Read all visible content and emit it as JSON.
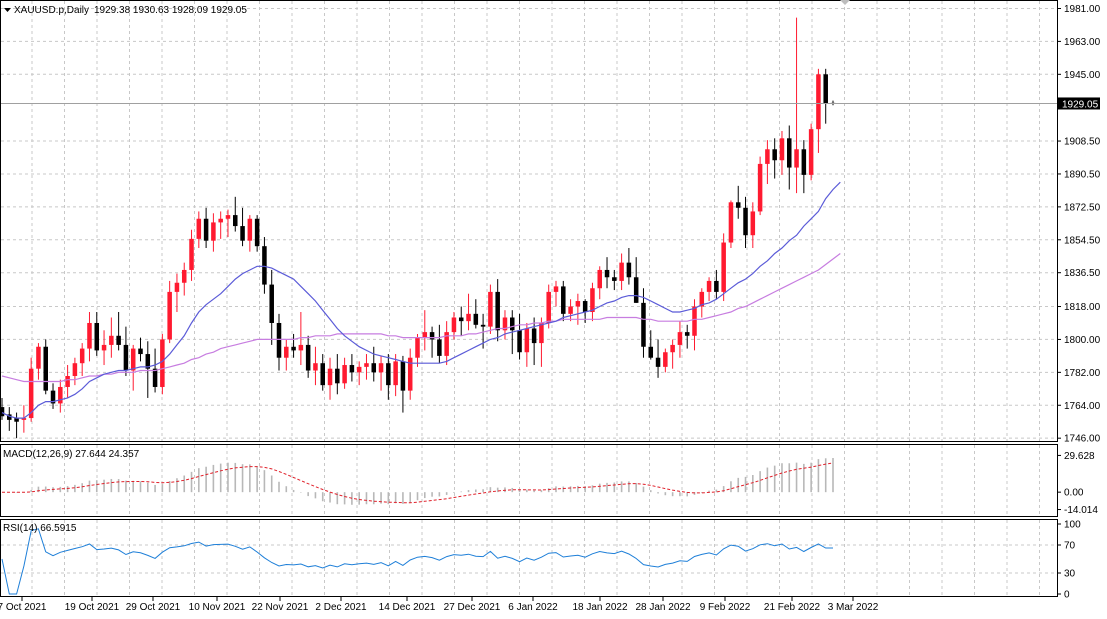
{
  "chart_data": {
    "type": "candlestick",
    "symbol_header": "XAUUSD.p,Daily",
    "ohlc_header": "1929.38 1930.63 1928.09 1929.05",
    "current_price_label": "1929.05",
    "date_labels": [
      "7 Oct 2021",
      "19 Oct 2021",
      "29 Oct 2021",
      "10 Nov 2021",
      "22 Nov 2021",
      "2 Dec 2021",
      "14 Dec 2021",
      "27 Dec 2021",
      "6 Jan 2022",
      "18 Jan 2022",
      "28 Jan 2022",
      "9 Feb 2022",
      "21 Feb 2022",
      "3 Mar 2022"
    ],
    "price_axis_ticks": [
      "1981.00",
      "1963.00",
      "1945.00",
      "1908.50",
      "1890.50",
      "1872.50",
      "1854.50",
      "1836.50",
      "1818.00",
      "1800.00",
      "1782.00",
      "1764.00",
      "1746.00"
    ],
    "price_axis_values": [
      1981,
      1963,
      1945,
      1908.5,
      1890.5,
      1872.5,
      1854.5,
      1836.5,
      1818,
      1800,
      1782,
      1764,
      1746
    ],
    "ylim": [
      1745,
      1984
    ],
    "candles": [
      [
        1763,
        1768,
        1756,
        1758
      ],
      [
        1759,
        1763,
        1750,
        1756
      ],
      [
        1757,
        1760,
        1746,
        1755
      ],
      [
        1756,
        1764,
        1749,
        1757
      ],
      [
        1757,
        1790,
        1755,
        1784
      ],
      [
        1784,
        1798,
        1778,
        1796
      ],
      [
        1796,
        1800,
        1770,
        1772
      ],
      [
        1772,
        1776,
        1762,
        1765
      ],
      [
        1765,
        1778,
        1760,
        1774
      ],
      [
        1774,
        1786,
        1768,
        1780
      ],
      [
        1780,
        1790,
        1775,
        1787
      ],
      [
        1787,
        1798,
        1780,
        1795
      ],
      [
        1795,
        1815,
        1788,
        1809
      ],
      [
        1809,
        1815,
        1791,
        1794
      ],
      [
        1794,
        1805,
        1786,
        1797
      ],
      [
        1797,
        1812,
        1790,
        1802
      ],
      [
        1802,
        1815,
        1794,
        1797
      ],
      [
        1797,
        1807,
        1780,
        1783
      ],
      [
        1783,
        1797,
        1772,
        1795
      ],
      [
        1795,
        1801,
        1788,
        1792
      ],
      [
        1792,
        1799,
        1768,
        1784
      ],
      [
        1784,
        1795,
        1771,
        1774
      ],
      [
        1774,
        1803,
        1770,
        1800
      ],
      [
        1800,
        1832,
        1798,
        1826
      ],
      [
        1826,
        1836,
        1815,
        1831
      ],
      [
        1831,
        1842,
        1824,
        1838
      ],
      [
        1838,
        1860,
        1832,
        1855
      ],
      [
        1855,
        1870,
        1850,
        1866
      ],
      [
        1866,
        1872,
        1850,
        1854
      ],
      [
        1854,
        1869,
        1848,
        1864
      ],
      [
        1864,
        1870,
        1855,
        1866
      ],
      [
        1866,
        1871,
        1856,
        1868
      ],
      [
        1868,
        1878,
        1859,
        1862
      ],
      [
        1862,
        1872,
        1851,
        1854
      ],
      [
        1854,
        1868,
        1848,
        1866
      ],
      [
        1866,
        1868,
        1848,
        1851
      ],
      [
        1851,
        1856,
        1825,
        1830
      ],
      [
        1830,
        1838,
        1797,
        1809
      ],
      [
        1809,
        1814,
        1783,
        1790
      ],
      [
        1790,
        1800,
        1783,
        1796
      ],
      [
        1796,
        1803,
        1790,
        1794
      ],
      [
        1794,
        1815,
        1786,
        1797
      ],
      [
        1797,
        1802,
        1779,
        1783
      ],
      [
        1783,
        1796,
        1775,
        1787
      ],
      [
        1787,
        1792,
        1772,
        1775
      ],
      [
        1775,
        1790,
        1767,
        1784
      ],
      [
        1784,
        1792,
        1770,
        1776
      ],
      [
        1776,
        1790,
        1773,
        1786
      ],
      [
        1786,
        1792,
        1777,
        1782
      ],
      [
        1782,
        1788,
        1775,
        1785
      ],
      [
        1785,
        1792,
        1778,
        1787
      ],
      [
        1787,
        1796,
        1777,
        1782
      ],
      [
        1782,
        1791,
        1772,
        1787
      ],
      [
        1787,
        1792,
        1767,
        1775
      ],
      [
        1775,
        1792,
        1769,
        1788
      ],
      [
        1788,
        1791,
        1760,
        1772
      ],
      [
        1772,
        1795,
        1767,
        1790
      ],
      [
        1790,
        1803,
        1785,
        1801
      ],
      [
        1801,
        1816,
        1794,
        1804
      ],
      [
        1804,
        1807,
        1790,
        1800
      ],
      [
        1800,
        1808,
        1787,
        1791
      ],
      [
        1791,
        1810,
        1786,
        1804
      ],
      [
        1804,
        1815,
        1800,
        1812
      ],
      [
        1812,
        1818,
        1802,
        1810
      ],
      [
        1810,
        1825,
        1805,
        1814
      ],
      [
        1814,
        1822,
        1806,
        1808
      ],
      [
        1808,
        1814,
        1795,
        1807
      ],
      [
        1807,
        1830,
        1803,
        1826
      ],
      [
        1826,
        1833,
        1799,
        1805
      ],
      [
        1805,
        1816,
        1800,
        1812
      ],
      [
        1812,
        1816,
        1792,
        1805
      ],
      [
        1805,
        1814,
        1789,
        1793
      ],
      [
        1793,
        1809,
        1785,
        1806
      ],
      [
        1806,
        1812,
        1786,
        1798
      ],
      [
        1798,
        1812,
        1785,
        1809
      ],
      [
        1809,
        1830,
        1806,
        1826
      ],
      [
        1826,
        1832,
        1818,
        1829
      ],
      [
        1829,
        1832,
        1810,
        1814
      ],
      [
        1814,
        1822,
        1810,
        1818
      ],
      [
        1818,
        1825,
        1808,
        1821
      ],
      [
        1821,
        1822,
        1809,
        1815
      ],
      [
        1815,
        1831,
        1810,
        1828
      ],
      [
        1828,
        1840,
        1822,
        1838
      ],
      [
        1838,
        1845,
        1828,
        1834
      ],
      [
        1834,
        1838,
        1827,
        1832
      ],
      [
        1832,
        1847,
        1827,
        1842
      ],
      [
        1842,
        1850,
        1830,
        1834
      ],
      [
        1834,
        1845,
        1820,
        1820
      ],
      [
        1820,
        1828,
        1790,
        1796
      ],
      [
        1796,
        1805,
        1789,
        1790
      ],
      [
        1790,
        1800,
        1779,
        1785
      ],
      [
        1785,
        1795,
        1782,
        1793
      ],
      [
        1793,
        1800,
        1784,
        1797
      ],
      [
        1797,
        1810,
        1790,
        1804
      ],
      [
        1804,
        1808,
        1795,
        1802
      ],
      [
        1802,
        1822,
        1794,
        1818
      ],
      [
        1818,
        1828,
        1812,
        1826
      ],
      [
        1826,
        1834,
        1821,
        1832
      ],
      [
        1832,
        1838,
        1822,
        1826
      ],
      [
        1826,
        1858,
        1821,
        1853
      ],
      [
        1853,
        1876,
        1850,
        1875
      ],
      [
        1875,
        1884,
        1866,
        1872
      ],
      [
        1872,
        1878,
        1850,
        1857
      ],
      [
        1857,
        1875,
        1850,
        1870
      ],
      [
        1870,
        1900,
        1868,
        1896
      ],
      [
        1896,
        1909,
        1885,
        1904
      ],
      [
        1904,
        1910,
        1888,
        1898
      ],
      [
        1898,
        1914,
        1890,
        1910
      ],
      [
        1910,
        1917,
        1882,
        1894
      ],
      [
        1894,
        1976,
        1880,
        1904
      ],
      [
        1904,
        1909,
        1880,
        1890
      ],
      [
        1890,
        1918,
        1887,
        1915
      ],
      [
        1915,
        1948,
        1902,
        1945
      ],
      [
        1945,
        1948,
        1918,
        1929
      ],
      [
        1929.38,
        1930.63,
        1928.09,
        1929.05
      ]
    ],
    "ma_fast": [
      1760,
      1758,
      1757,
      1757,
      1760,
      1764,
      1766,
      1766,
      1767,
      1768,
      1770,
      1773,
      1777,
      1779,
      1781,
      1782,
      1783,
      1783,
      1784,
      1785,
      1785,
      1786,
      1788,
      1792,
      1797,
      1802,
      1809,
      1815,
      1819,
      1822,
      1825,
      1829,
      1833,
      1836,
      1838,
      1840,
      1840,
      1839,
      1837,
      1835,
      1833,
      1829,
      1825,
      1821,
      1816,
      1811,
      1806,
      1802,
      1799,
      1796,
      1794,
      1792,
      1791,
      1790,
      1789,
      1788,
      1787,
      1787,
      1787,
      1787,
      1787,
      1788,
      1790,
      1792,
      1794,
      1796,
      1798,
      1800,
      1801,
      1803,
      1804,
      1805,
      1806,
      1807,
      1808,
      1809,
      1810,
      1812,
      1813,
      1814,
      1815,
      1816,
      1818,
      1820,
      1821,
      1823,
      1824,
      1824,
      1823,
      1821,
      1819,
      1817,
      1815,
      1815,
      1816,
      1817,
      1819,
      1820,
      1822,
      1825,
      1828,
      1831,
      1833,
      1836,
      1840,
      1843,
      1847,
      1850,
      1854,
      1857,
      1862,
      1866,
      1870,
      1877,
      1882,
      1886
    ],
    "ma_slow": [
      1780,
      1779,
      1778,
      1777,
      1777,
      1777,
      1777,
      1777,
      1777,
      1778,
      1778,
      1779,
      1780,
      1780,
      1781,
      1781,
      1782,
      1782,
      1782,
      1783,
      1783,
      1783,
      1784,
      1785,
      1786,
      1787,
      1789,
      1790,
      1792,
      1793,
      1795,
      1796,
      1797,
      1798,
      1799,
      1800,
      1800,
      1800,
      1800,
      1800,
      1800,
      1801,
      1801,
      1802,
      1802,
      1802,
      1803,
      1803,
      1803,
      1803,
      1803,
      1803,
      1803,
      1802,
      1802,
      1801,
      1801,
      1801,
      1801,
      1801,
      1801,
      1802,
      1802,
      1802,
      1803,
      1803,
      1804,
      1805,
      1806,
      1806,
      1807,
      1808,
      1808,
      1809,
      1809,
      1810,
      1810,
      1811,
      1811,
      1811,
      1811,
      1811,
      1811,
      1812,
      1812,
      1812,
      1812,
      1812,
      1811,
      1811,
      1810,
      1810,
      1810,
      1810,
      1810,
      1811,
      1811,
      1812,
      1813,
      1814,
      1815,
      1817,
      1818,
      1820,
      1822,
      1824,
      1826,
      1828,
      1830,
      1832,
      1834,
      1836,
      1838,
      1841,
      1844,
      1847
    ],
    "macd": {
      "label": "MACD(12,26,9) 27.644 24.357",
      "axis_ticks": [
        "29.628",
        "0.00",
        "-14.014"
      ],
      "axis_values": [
        29.628,
        0,
        -14.014
      ],
      "ylim": [
        -16,
        34
      ]
    },
    "rsi": {
      "label": "RSI(14) 66.5915",
      "axis_ticks": [
        "100",
        "70",
        "30",
        "0"
      ],
      "axis_values": [
        100,
        70,
        30,
        0
      ],
      "ylim": [
        0,
        100
      ]
    },
    "colors": {
      "bull": "#ff1a30",
      "bear": "#000000",
      "ma_fast": "#5b5bd8",
      "ma_slow": "#c77de0",
      "macd_hist": "#b8b8b8",
      "macd_signal": "#e0202a",
      "rsi_line": "#1e7fd8",
      "grid": "#c8c8c8"
    }
  }
}
